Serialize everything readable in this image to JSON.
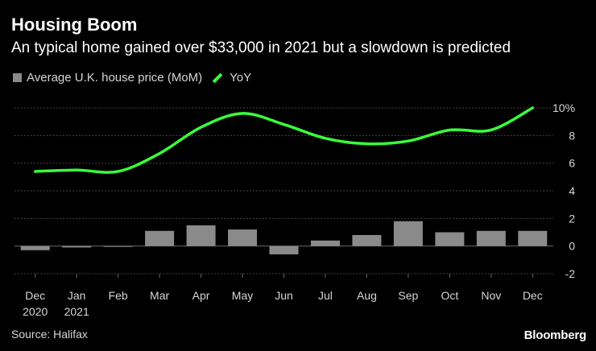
{
  "title": "Housing Boom",
  "subtitle": "An typical home gained over $33,000 in 2021 but a slowdown is predicted",
  "source": "Source: Halifax",
  "brand": "Bloomberg",
  "colors": {
    "background": "#000000",
    "bar": "#8a8a8a",
    "line": "#39ff3c",
    "grid": "#444444",
    "text": "#d6d6d6"
  },
  "legend": {
    "bars": "Average U.K. house price (MoM)",
    "line": "YoY"
  },
  "chart_data": {
    "type": "bar",
    "title": "Housing Boom",
    "categories": [
      "Dec",
      "Jan",
      "Feb",
      "Mar",
      "Apr",
      "May",
      "Jun",
      "Jul",
      "Aug",
      "Sep",
      "Oct",
      "Nov",
      "Dec"
    ],
    "category_sublabels": [
      "2020",
      "2021",
      "",
      "",
      "",
      "",
      "",
      "",
      "",
      "",
      "",
      "",
      ""
    ],
    "ylim": [
      -2,
      10
    ],
    "yticks": [
      -2,
      0,
      2,
      4,
      6,
      8,
      10
    ],
    "ytick_labels": [
      "-2",
      "0",
      "2",
      "4",
      "6",
      "8",
      "10%"
    ],
    "series": [
      {
        "name": "Average U.K. house price (MoM)",
        "type": "bar",
        "values": [
          -0.3,
          -0.1,
          0.0,
          1.1,
          1.5,
          1.2,
          -0.6,
          0.4,
          0.8,
          1.8,
          1.0,
          1.1,
          1.1
        ]
      },
      {
        "name": "YoY",
        "type": "line",
        "values": [
          5.4,
          5.5,
          5.4,
          6.7,
          8.6,
          9.6,
          8.8,
          7.8,
          7.4,
          7.6,
          8.4,
          8.4,
          10.0
        ]
      }
    ]
  }
}
